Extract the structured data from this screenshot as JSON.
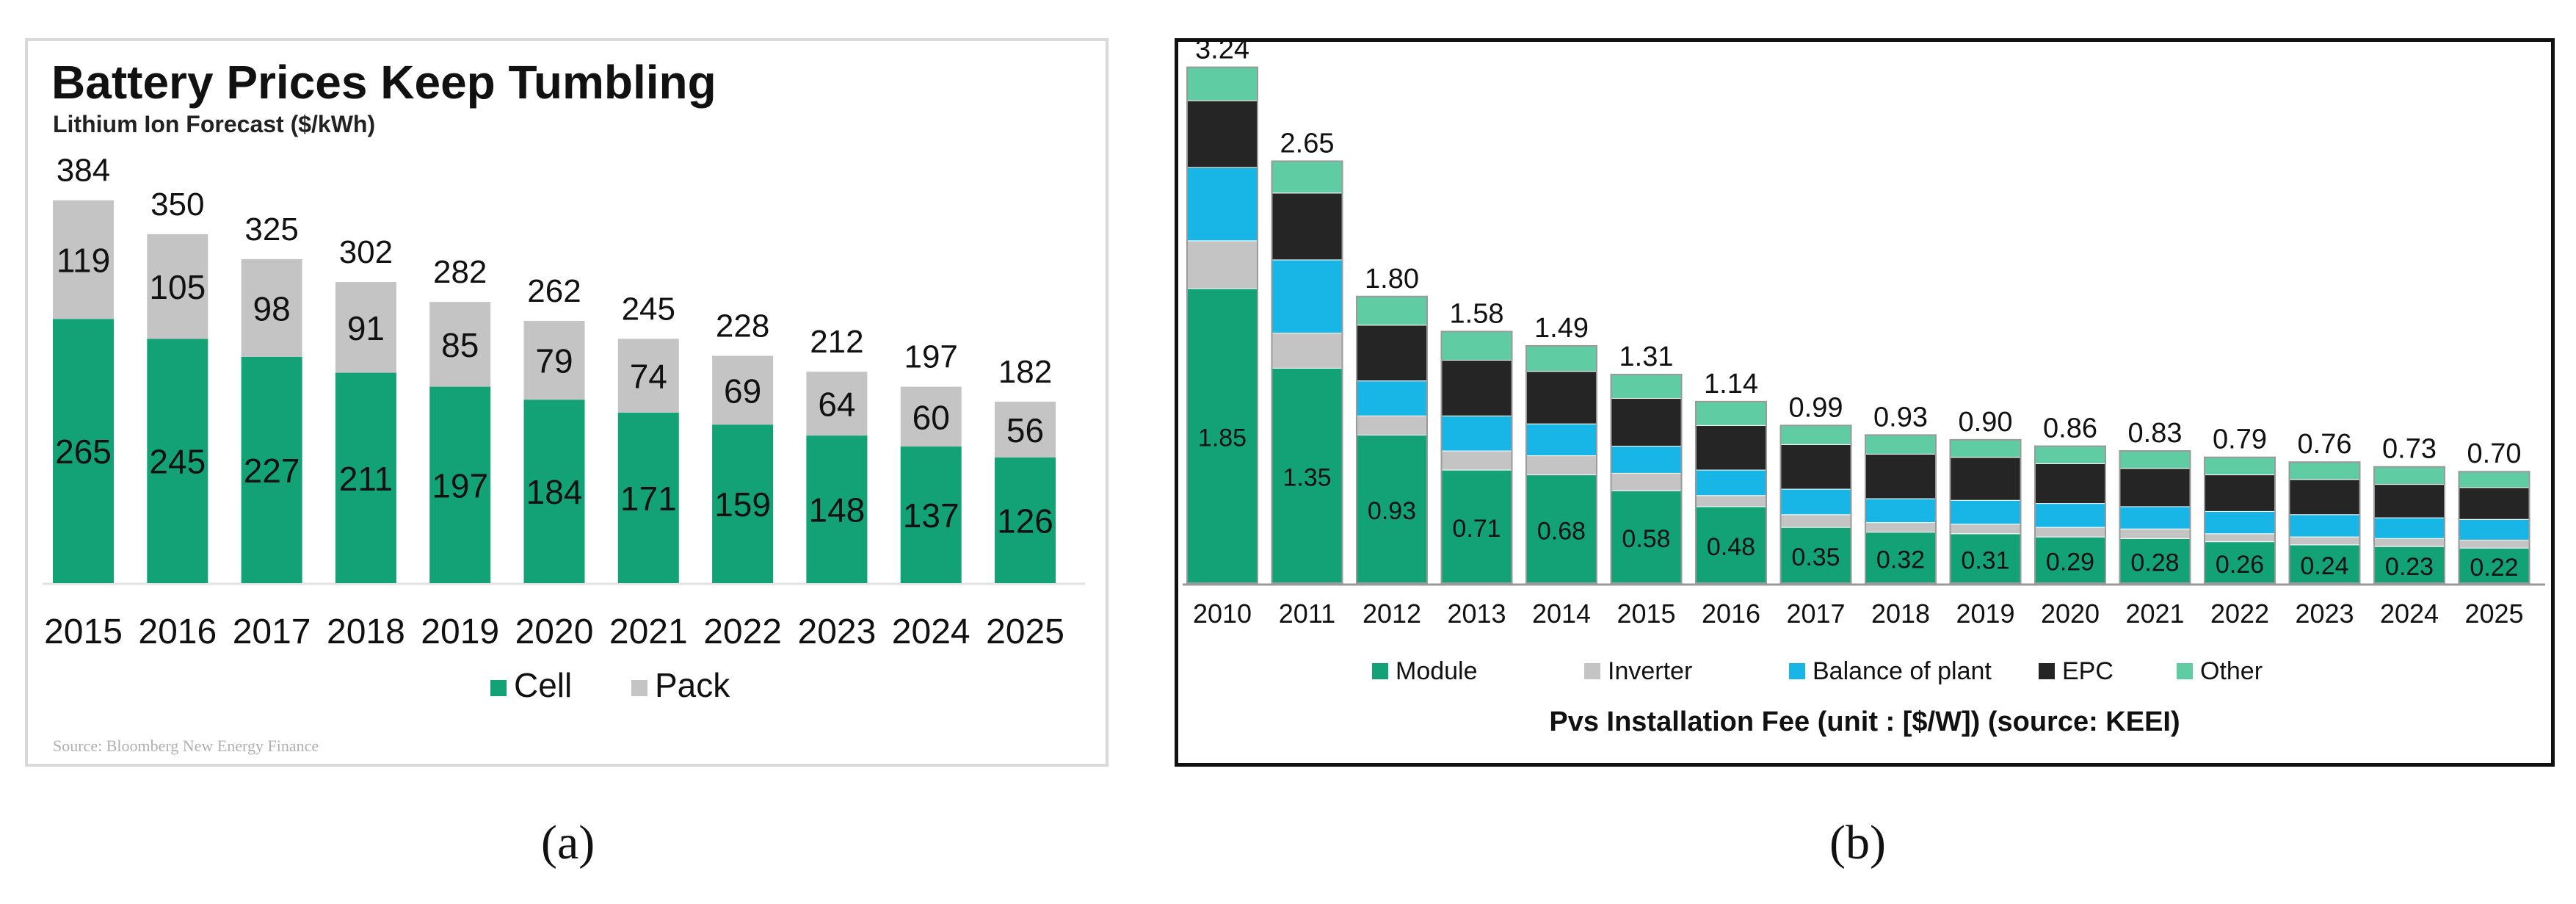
{
  "figure": {
    "caption_a": "(a)",
    "caption_b": "(b)"
  },
  "chart_data": [
    {
      "type": "bar",
      "stacked": true,
      "title": "Battery Prices Keep Tumbling",
      "subtitle": "Lithium Ion Forecast ($/kWh)",
      "source": "Source: Bloomberg New Energy Finance",
      "categories": [
        "2015",
        "2016",
        "2017",
        "2018",
        "2019",
        "2020",
        "2021",
        "2022",
        "2023",
        "2024",
        "2025"
      ],
      "series": [
        {
          "name": "Cell",
          "color": "#13a276",
          "values": [
            265,
            245,
            227,
            211,
            197,
            184,
            171,
            159,
            148,
            137,
            126
          ]
        },
        {
          "name": "Pack",
          "color": "#c4c4c4",
          "values": [
            119,
            105,
            98,
            91,
            85,
            79,
            74,
            69,
            64,
            60,
            56
          ]
        }
      ],
      "totals": [
        384,
        350,
        325,
        302,
        282,
        262,
        245,
        228,
        212,
        197,
        182
      ],
      "ylim": [
        0,
        400
      ],
      "legend": "bottom",
      "grid": false
    },
    {
      "type": "bar",
      "stacked": true,
      "title": "Pvs Installation Fee (unit : [$/W]) (source: KEEI)",
      "categories": [
        "2010",
        "2011",
        "2012",
        "2013",
        "2014",
        "2015",
        "2016",
        "2017",
        "2018",
        "2019",
        "2020",
        "2021",
        "2022",
        "2023",
        "2024",
        "2025"
      ],
      "series": [
        {
          "name": "Module",
          "color": "#13a276",
          "values": [
            1.85,
            1.35,
            0.93,
            0.71,
            0.68,
            0.58,
            0.48,
            0.35,
            0.32,
            0.31,
            0.29,
            0.28,
            0.26,
            0.24,
            0.23,
            0.22
          ]
        },
        {
          "name": "Inverter",
          "color": "#c4c4c4",
          "values": [
            0.3,
            0.22,
            0.12,
            0.12,
            0.12,
            0.11,
            0.07,
            0.08,
            0.06,
            0.06,
            0.06,
            0.06,
            0.05,
            0.05,
            0.05,
            0.05
          ]
        },
        {
          "name": "Balance of plant",
          "color": "#17b6e6",
          "values": [
            0.46,
            0.46,
            0.22,
            0.22,
            0.2,
            0.17,
            0.16,
            0.16,
            0.15,
            0.15,
            0.15,
            0.14,
            0.14,
            0.14,
            0.13,
            0.13
          ]
        },
        {
          "name": "EPC",
          "color": "#252525",
          "values": [
            0.42,
            0.42,
            0.35,
            0.35,
            0.33,
            0.3,
            0.28,
            0.28,
            0.28,
            0.27,
            0.25,
            0.24,
            0.23,
            0.22,
            0.21,
            0.2
          ]
        },
        {
          "name": "Other",
          "color": "#5fcca3",
          "values": [
            0.21,
            0.2,
            0.18,
            0.18,
            0.16,
            0.15,
            0.15,
            0.12,
            0.12,
            0.11,
            0.11,
            0.11,
            0.11,
            0.11,
            0.11,
            0.1
          ]
        }
      ],
      "totals": [
        "3.24",
        "2.65",
        "1.80",
        "1.58",
        "1.49",
        "1.31",
        "1.14",
        "0.99",
        "0.93",
        "0.90",
        "0.86",
        "0.83",
        "0.79",
        "0.76",
        "0.73",
        "0.70"
      ],
      "module_labels": [
        "1.85",
        "1.35",
        "0.93",
        "0.71",
        "0.68",
        "0.58",
        "0.48",
        "0.35",
        "0.32",
        "0.31",
        "0.29",
        "0.28",
        "0.26",
        "0.24",
        "0.23",
        "0.22"
      ],
      "ylim": [
        0,
        3.3
      ],
      "legend": "bottom",
      "grid": false
    }
  ]
}
